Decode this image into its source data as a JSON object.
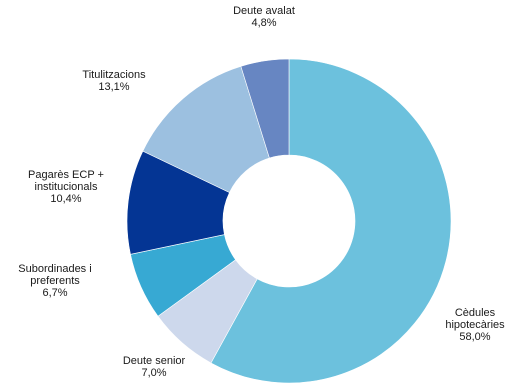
{
  "chart_data": {
    "type": "pie",
    "variant": "donut",
    "title": "",
    "legend": "none",
    "categories": [
      "Cèdules hipotecàries",
      "Deute senior",
      "Subordinades i preferents",
      "Pagarès ECP + institucionals",
      "Titulitzacions",
      "Deute avalat"
    ],
    "values": [
      58.0,
      7.0,
      6.7,
      10.4,
      13.1,
      4.8
    ],
    "value_labels": [
      "58,0%",
      "7,0%",
      "6,7%",
      "10,4%",
      "13,1%",
      "4,8%"
    ],
    "label_lines": [
      [
        "Cèdules",
        "hipotecàries"
      ],
      [
        "Deute senior"
      ],
      [
        "Subordinades i",
        "preferents"
      ],
      [
        "Pagarès ECP +",
        "institucionals"
      ],
      [
        "Titulitzacions"
      ],
      [
        "Deute avalat"
      ]
    ],
    "colors": [
      "#6cc1dd",
      "#cdd8ec",
      "#37a9d3",
      "#043594",
      "#9cc0e0",
      "#6786c2"
    ],
    "start_angle_deg": 0,
    "direction": "clockwise"
  }
}
